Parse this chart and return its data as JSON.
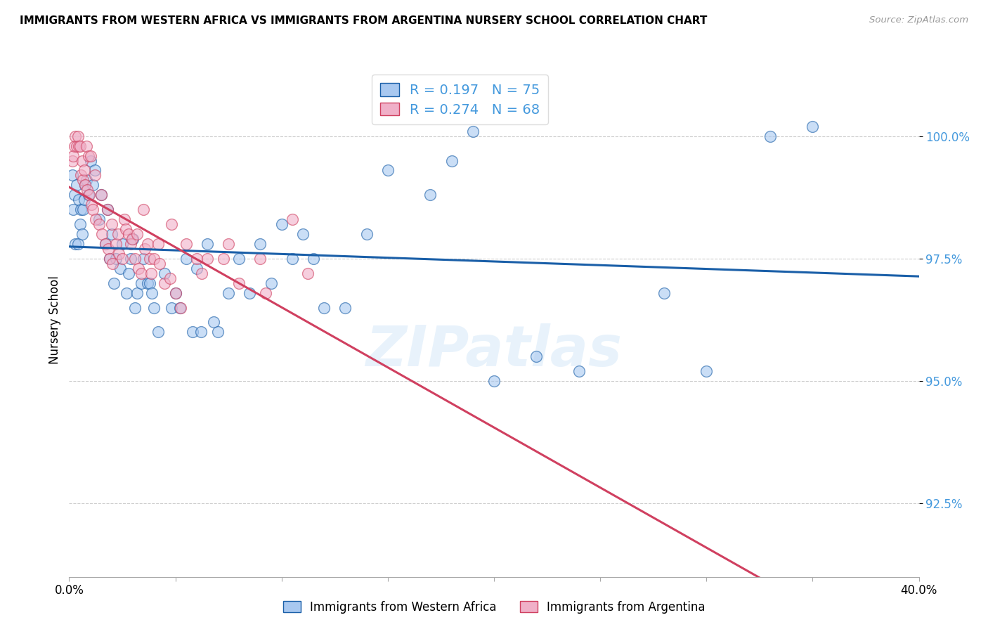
{
  "title": "IMMIGRANTS FROM WESTERN AFRICA VS IMMIGRANTS FROM ARGENTINA NURSERY SCHOOL CORRELATION CHART",
  "source": "Source: ZipAtlas.com",
  "ylabel": "Nursery School",
  "ytick_labels": [
    "100.0%",
    "97.5%",
    "95.0%",
    "92.5%"
  ],
  "ytick_values": [
    100.0,
    97.5,
    95.0,
    92.5
  ],
  "xlim": [
    0.0,
    40.0
  ],
  "ylim": [
    91.0,
    101.5
  ],
  "blue_R": 0.197,
  "blue_N": 75,
  "pink_R": 0.274,
  "pink_N": 68,
  "blue_color": "#a8c8f0",
  "pink_color": "#f0b0c8",
  "blue_line_color": "#1a5fa8",
  "pink_line_color": "#d04060",
  "blue_text_color": "#4499dd",
  "legend_label_blue": "Immigrants from Western Africa",
  "legend_label_pink": "Immigrants from Argentina",
  "blue_scatter_x": [
    0.15,
    0.2,
    0.25,
    0.3,
    0.35,
    0.4,
    0.45,
    0.5,
    0.55,
    0.6,
    0.65,
    0.7,
    0.75,
    0.8,
    0.9,
    1.0,
    1.1,
    1.2,
    1.4,
    1.5,
    1.7,
    1.8,
    1.9,
    2.0,
    2.1,
    2.2,
    2.4,
    2.5,
    2.7,
    2.8,
    2.9,
    3.0,
    3.1,
    3.2,
    3.4,
    3.5,
    3.7,
    3.8,
    3.9,
    4.0,
    4.2,
    4.5,
    4.8,
    5.0,
    5.2,
    5.5,
    5.8,
    6.0,
    6.2,
    6.5,
    6.8,
    7.0,
    7.5,
    8.0,
    8.5,
    9.0,
    9.5,
    10.0,
    10.5,
    11.0,
    11.5,
    12.0,
    13.0,
    14.0,
    15.0,
    17.0,
    18.0,
    19.0,
    20.0,
    22.0,
    24.0,
    28.0,
    30.0,
    33.0,
    35.0
  ],
  "blue_scatter_y": [
    99.2,
    98.5,
    98.8,
    97.8,
    99.0,
    97.8,
    98.7,
    98.2,
    98.5,
    98.0,
    98.5,
    98.7,
    99.0,
    99.1,
    98.8,
    99.5,
    99.0,
    99.3,
    98.3,
    98.8,
    97.8,
    98.5,
    97.5,
    98.0,
    97.0,
    97.5,
    97.3,
    97.8,
    96.8,
    97.2,
    97.5,
    97.9,
    96.5,
    96.8,
    97.0,
    97.5,
    97.0,
    97.0,
    96.8,
    96.5,
    96.0,
    97.2,
    96.5,
    96.8,
    96.5,
    97.5,
    96.0,
    97.3,
    96.0,
    97.8,
    96.2,
    96.0,
    96.8,
    97.5,
    96.8,
    97.8,
    97.0,
    98.2,
    97.5,
    98.0,
    97.5,
    96.5,
    96.5,
    98.0,
    99.3,
    98.8,
    99.5,
    100.1,
    95.0,
    95.5,
    95.2,
    96.8,
    95.2,
    100.0,
    100.2
  ],
  "pink_scatter_x": [
    0.15,
    0.2,
    0.25,
    0.3,
    0.35,
    0.4,
    0.45,
    0.5,
    0.55,
    0.6,
    0.65,
    0.7,
    0.75,
    0.8,
    0.85,
    0.9,
    0.95,
    1.0,
    1.05,
    1.1,
    1.2,
    1.25,
    1.4,
    1.5,
    1.55,
    1.7,
    1.8,
    1.85,
    1.9,
    2.0,
    2.05,
    2.2,
    2.3,
    2.35,
    2.5,
    2.6,
    2.65,
    2.8,
    2.9,
    2.95,
    3.1,
    3.2,
    3.25,
    3.4,
    3.5,
    3.55,
    3.7,
    3.8,
    3.85,
    4.0,
    4.2,
    4.25,
    4.5,
    4.75,
    4.8,
    5.0,
    5.25,
    5.5,
    6.0,
    6.25,
    6.5,
    7.25,
    7.5,
    8.0,
    9.0,
    9.25,
    10.5,
    11.25
  ],
  "pink_scatter_y": [
    99.5,
    99.6,
    99.8,
    100.0,
    99.8,
    100.0,
    99.8,
    99.8,
    99.2,
    99.5,
    99.1,
    99.3,
    99.0,
    99.8,
    98.9,
    99.6,
    98.8,
    99.6,
    98.6,
    98.5,
    99.2,
    98.3,
    98.2,
    98.8,
    98.0,
    97.8,
    98.5,
    97.7,
    97.5,
    98.2,
    97.4,
    97.8,
    98.0,
    97.6,
    97.5,
    98.3,
    98.1,
    98.0,
    97.8,
    97.9,
    97.5,
    98.0,
    97.3,
    97.2,
    98.5,
    97.7,
    97.8,
    97.5,
    97.2,
    97.5,
    97.8,
    97.4,
    97.0,
    97.1,
    98.2,
    96.8,
    96.5,
    97.8,
    97.5,
    97.2,
    97.5,
    97.5,
    97.8,
    97.0,
    97.5,
    96.8,
    98.3,
    97.2
  ]
}
